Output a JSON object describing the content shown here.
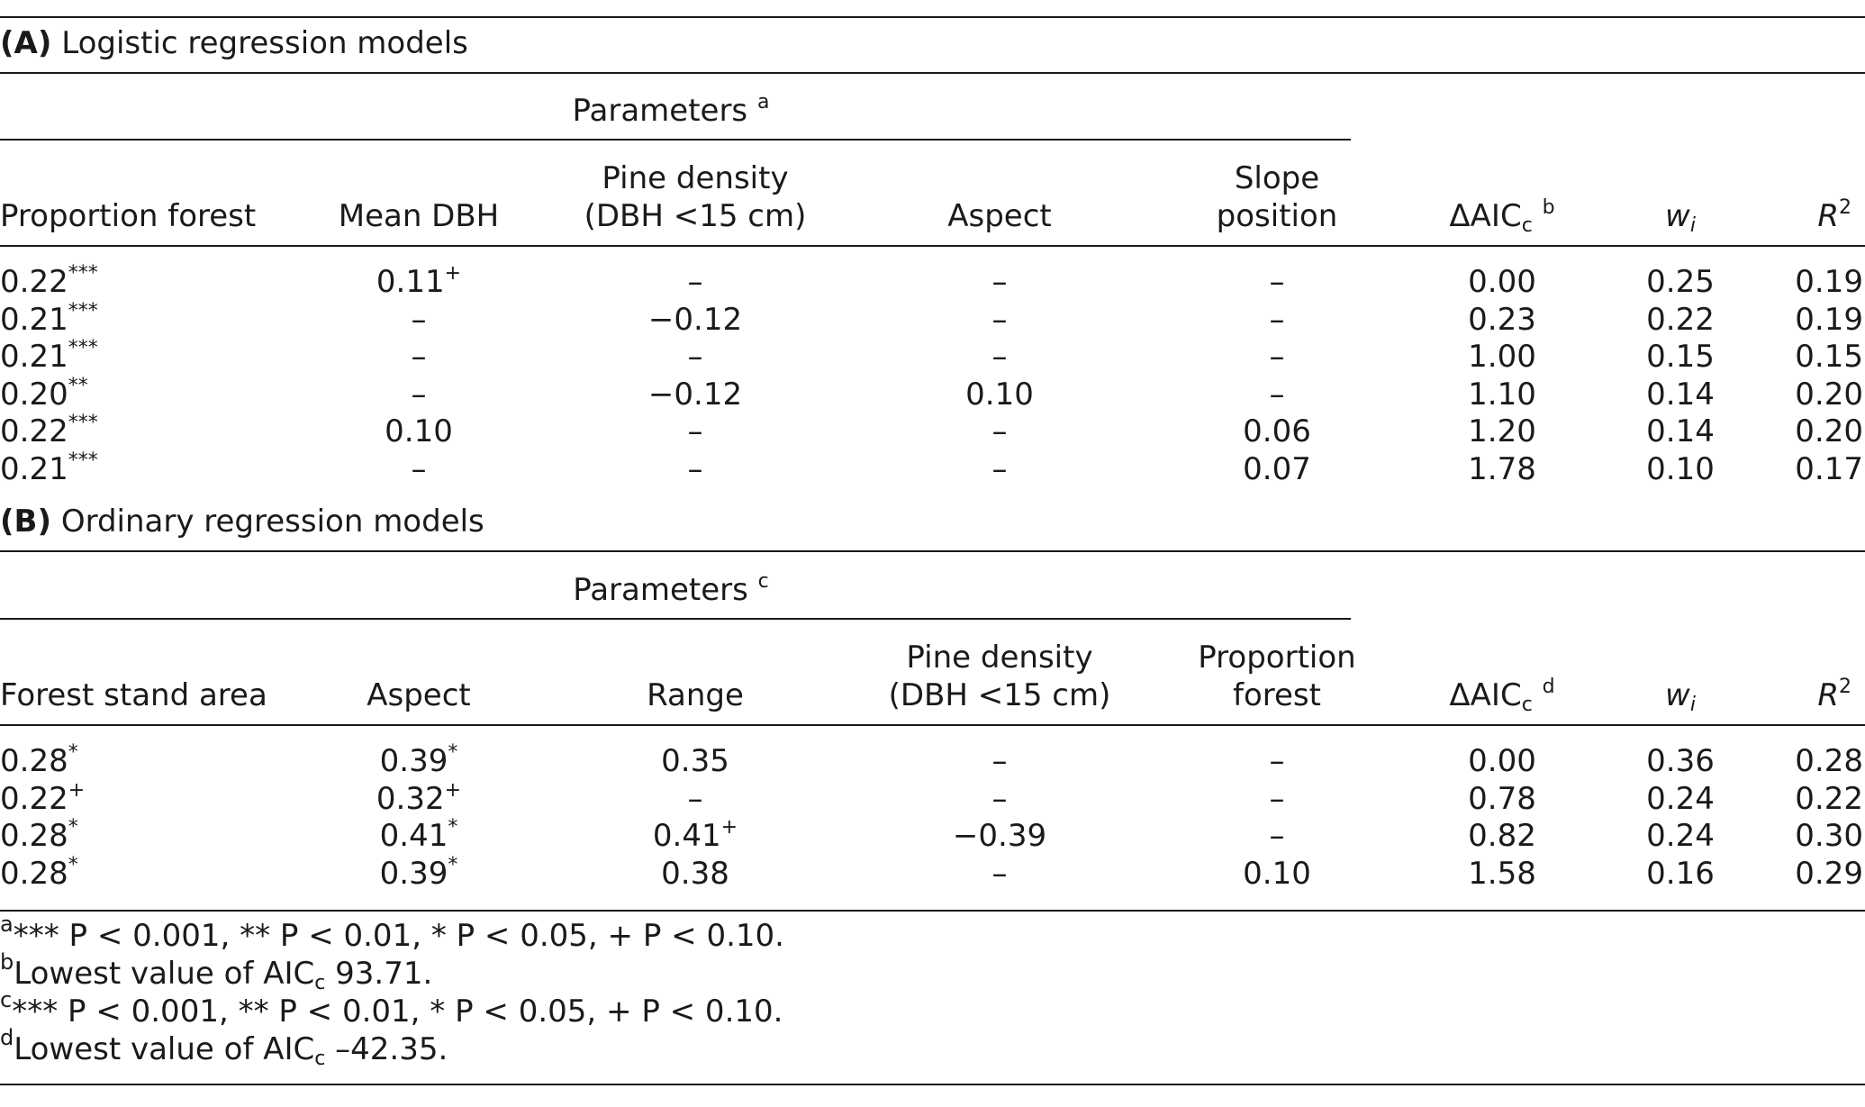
{
  "section_a": {
    "label": "(A)",
    "title": "Logistic regression models",
    "params_header": "Parameters",
    "params_header_note": "a",
    "columns": [
      {
        "line1": "",
        "line2": "Proportion forest"
      },
      {
        "line1": "",
        "line2": "Mean DBH"
      },
      {
        "line1": "Pine density",
        "line2": "(DBH <15 cm)"
      },
      {
        "line1": "",
        "line2": "Aspect"
      },
      {
        "line1": "Slope",
        "line2": "position"
      }
    ],
    "aic_header": "ΔAIC",
    "aic_sub": "c",
    "aic_note": "b",
    "wi_header": "w",
    "wi_sub": "i",
    "r2_header": "R",
    "r2_sup": "2",
    "rows": [
      {
        "c1": "0.22",
        "c1s": "***",
        "c2": "0.11",
        "c2s": "+",
        "c3": "–",
        "c4": "–",
        "c5": "–",
        "aic": "0.00",
        "wi": "0.25",
        "r2": "0.19"
      },
      {
        "c1": "0.21",
        "c1s": "***",
        "c2": "–",
        "c2s": "",
        "c3": "−0.12",
        "c4": "–",
        "c5": "–",
        "aic": "0.23",
        "wi": "0.22",
        "r2": "0.19"
      },
      {
        "c1": "0.21",
        "c1s": "***",
        "c2": "–",
        "c2s": "",
        "c3": "–",
        "c4": "–",
        "c5": "–",
        "aic": "1.00",
        "wi": "0.15",
        "r2": "0.15"
      },
      {
        "c1": "0.20",
        "c1s": "**",
        "c2": "–",
        "c2s": "",
        "c3": "−0.12",
        "c4": "0.10",
        "c5": "–",
        "aic": "1.10",
        "wi": "0.14",
        "r2": "0.20"
      },
      {
        "c1": "0.22",
        "c1s": "***",
        "c2": "0.10",
        "c2s": "",
        "c3": "–",
        "c4": "–",
        "c5": "0.06",
        "aic": "1.20",
        "wi": "0.14",
        "r2": "0.20"
      },
      {
        "c1": "0.21",
        "c1s": "***",
        "c2": "–",
        "c2s": "",
        "c3": "–",
        "c4": "–",
        "c5": "0.07",
        "aic": "1.78",
        "wi": "0.10",
        "r2": "0.17"
      }
    ]
  },
  "section_b": {
    "label": "(B)",
    "title": "Ordinary regression models",
    "params_header": "Parameters",
    "params_header_note": "c",
    "columns": [
      {
        "line1": "",
        "line2": "Forest stand area"
      },
      {
        "line1": "",
        "line2": "Aspect"
      },
      {
        "line1": "",
        "line2": "Range"
      },
      {
        "line1": "Pine density",
        "line2": "(DBH <15 cm)"
      },
      {
        "line1": "Proportion",
        "line2": "forest"
      }
    ],
    "aic_header": "ΔAIC",
    "aic_sub": "c",
    "aic_note": "d",
    "wi_header": "w",
    "wi_sub": "i",
    "r2_header": "R",
    "r2_sup": "2",
    "rows": [
      {
        "c1": "0.28",
        "c1s": "*",
        "c2": "0.39",
        "c2s": "*",
        "c3": "0.35",
        "c3s": "",
        "c4": "–",
        "c5": "–",
        "aic": "0.00",
        "wi": "0.36",
        "r2": "0.28"
      },
      {
        "c1": "0.22",
        "c1s": "+",
        "c2": "0.32",
        "c2s": "+",
        "c3": "–",
        "c3s": "",
        "c4": "–",
        "c5": "–",
        "aic": "0.78",
        "wi": "0.24",
        "r2": "0.22"
      },
      {
        "c1": "0.28",
        "c1s": "*",
        "c2": "0.41",
        "c2s": "*",
        "c3": "0.41",
        "c3s": "+",
        "c4": "−0.39",
        "c5": "–",
        "aic": "0.82",
        "wi": "0.24",
        "r2": "0.30"
      },
      {
        "c1": "0.28",
        "c1s": "*",
        "c2": "0.39",
        "c2s": "*",
        "c3": "0.38",
        "c3s": "",
        "c4": "–",
        "c5": "0.10",
        "aic": "1.58",
        "wi": "0.16",
        "r2": "0.29"
      }
    ]
  },
  "footnotes": [
    {
      "mark": "a",
      "text": "*** P < 0.001, ** P < 0.01, * P < 0.05, + P < 0.10."
    },
    {
      "mark": "b",
      "text_before": "Lowest value of AIC",
      "sub": "c",
      "text_after": " 93.71."
    },
    {
      "mark": "c",
      "text": "*** P < 0.001, ** P < 0.01, * P < 0.05, + P < 0.10."
    },
    {
      "mark": "d",
      "text_before": "Lowest value of AIC",
      "sub": "c",
      "text_after": " –42.35."
    }
  ]
}
